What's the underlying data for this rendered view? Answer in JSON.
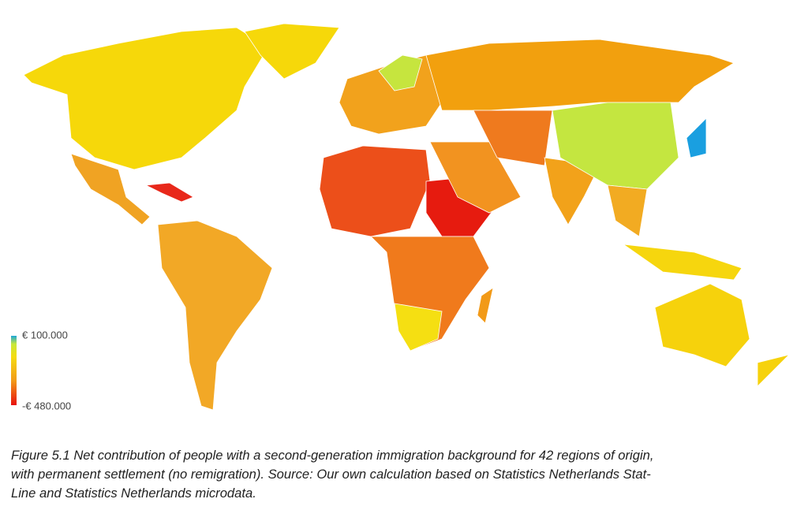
{
  "legend": {
    "max_label": "€ 100.000",
    "min_label": "-€ 480.000"
  },
  "caption": {
    "lines": [
      "Figure 5.1 Net contribution of people with a second-generation immigration background for 42 regions of origin,",
      "with permanent settlement (no remigration). Source: Our own calculation based on Statistics Netherlands Stat-",
      "Line and Statistics Netherlands microdata."
    ]
  }
}
